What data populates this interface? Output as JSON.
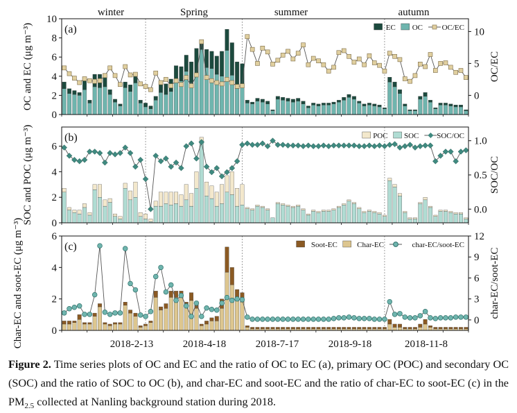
{
  "figure": {
    "seasons": [
      "winter",
      "Spring",
      "summer",
      "autumn"
    ],
    "x_ticks": [
      "2018-2-13",
      "2018-4-18",
      "2018-7-17",
      "2018-9-18",
      "2018-11-8"
    ],
    "caption": {
      "label": "Figure 2.",
      "text_before_sub": " Time series plots of OC and EC and the ratio of OC to EC (a), primary OC (POC) and secondary OC (SOC) and the ratio of SOC to OC (b), and char-EC and soot-EC and the ratio of char-EC to soot-EC (c) in the PM",
      "sub": "2.5",
      "text_after_sub": " collected at Nanling background station during 2018."
    }
  },
  "colors": {
    "ec": "#1c4a3e",
    "oc": "#6fb5ae",
    "ocec_marker": "#e0cf9f",
    "poc": "#f3e8cc",
    "soc": "#b0dcd3",
    "sococ_marker": "#3f8a80",
    "soot": "#8b5a23",
    "char": "#ddc68f",
    "ratio_c_marker": "#6fb5ae",
    "line": "#555555"
  },
  "chart_data": [
    {
      "type": "bar",
      "panel_label": "(a)",
      "stacked": true,
      "ylabel": "OC and EC (μg m⁻³)",
      "y2label": "OC/EC",
      "ylim": [
        0,
        10
      ],
      "y2lim": [
        -3,
        12
      ],
      "yticks": [
        0,
        2,
        4,
        6,
        8,
        10
      ],
      "y2ticks": [
        0,
        5,
        10
      ],
      "legend": "top-right",
      "series": [
        {
          "name": "OC",
          "values": [
            2.7,
            2.2,
            2.1,
            2.0,
            2.6,
            1.2,
            2.9,
            2.8,
            2.9,
            2.1,
            1.3,
            0.9,
            2.8,
            2.4,
            3.3,
            1.2,
            0.8,
            0.6,
            1.5,
            2.3,
            2.1,
            2.4,
            3.7,
            3.5,
            4.5,
            3.3,
            4.3,
            6.8,
            4.9,
            4.8,
            4.2,
            4.0,
            6.7,
            4.1,
            2.7,
            2.8,
            1.2,
            1.1,
            1.4,
            1.3,
            1.1,
            0.4,
            1.6,
            1.5,
            1.4,
            1.3,
            1.4,
            1.1,
            0.7,
            1.0,
            0.9,
            1.0,
            1.0,
            1.1,
            1.3,
            1.5,
            1.8,
            1.6,
            1.2,
            0.9,
            1.0,
            0.9,
            0.8,
            0.6,
            3.4,
            2.9,
            2.2,
            0.9,
            0.4,
            0.4,
            1.6,
            1.9,
            1.3,
            0.6,
            1.0,
            1.0,
            0.9,
            0.8,
            0.8,
            0.4
          ]
        },
        {
          "name": "EC",
          "values": [
            0.7,
            0.5,
            0.4,
            0.3,
            1.3,
            0.3,
            1.3,
            1.4,
            1.4,
            0.5,
            0.3,
            0.2,
            0.6,
            0.7,
            1.1,
            0.3,
            0.4,
            0.3,
            0.4,
            1.1,
            1.1,
            1.3,
            1.4,
            1.5,
            1.7,
            2.2,
            2.6,
            1.0,
            1.9,
            1.8,
            1.9,
            2.6,
            2.2,
            3.4,
            2.8,
            2.5,
            0.3,
            0.2,
            0.3,
            0.3,
            0.3,
            0.1,
            0.3,
            0.3,
            0.3,
            0.3,
            0.3,
            0.3,
            0.2,
            0.2,
            0.2,
            0.2,
            0.2,
            0.2,
            0.2,
            0.3,
            0.3,
            0.3,
            0.2,
            0.2,
            0.2,
            0.2,
            0.2,
            0.1,
            0.5,
            0.5,
            0.4,
            0.2,
            0.1,
            0.1,
            0.3,
            0.4,
            0.2,
            0.1,
            0.2,
            0.2,
            0.2,
            0.2,
            0.2,
            0.1
          ]
        },
        {
          "name": "OC/EC",
          "axis": "right",
          "type": "line",
          "values": [
            4.3,
            3.4,
            2.7,
            2.0,
            2.6,
            2.3,
            2.2,
            2.3,
            3.1,
            4.3,
            3.1,
            1.7,
            4.5,
            3.2,
            3.3,
            1.8,
            1.4,
            0.9,
            3.5,
            2.0,
            2.5,
            1.5,
            2.3,
            1.7,
            2.8,
            1.5,
            3.2,
            8.4,
            2.8,
            2.3,
            2.0,
            1.8,
            2.5,
            2.0,
            1.4,
            1.5,
            9.2,
            7.2,
            5.0,
            7.4,
            6.8,
            4.9,
            5.5,
            6.3,
            6.9,
            5.7,
            6.6,
            7.9,
            4.8,
            5.8,
            5.4,
            4.8,
            3.8,
            4.4,
            6.7,
            7.0,
            6.1,
            5.2,
            5.7,
            4.8,
            6.2,
            5.1,
            4.7,
            3.8,
            6.6,
            6.1,
            5.6,
            2.6,
            2.2,
            3.1,
            4.9,
            4.5,
            6.4,
            3.9,
            5.0,
            5.1,
            4.4,
            3.6,
            3.9,
            2.8
          ]
        }
      ]
    },
    {
      "type": "bar",
      "panel_label": "(b)",
      "stacked": true,
      "ylabel": "SOC and POC (μg m⁻³)",
      "y2label": "SOC/OC",
      "ylim": [
        0,
        7.5
      ],
      "y2lim": [
        -0.2,
        1.2
      ],
      "yticks": [
        0,
        2,
        4,
        6
      ],
      "y2ticks": [
        0.0,
        0.5,
        1.0
      ],
      "legend": "top-right",
      "series": [
        {
          "name": "SOC",
          "values": [
            2.4,
            1.0,
            0.8,
            0.7,
            1.2,
            0.6,
            2.6,
            2.0,
            1.3,
            1.6,
            0.5,
            0.3,
            2.7,
            1.8,
            2.0,
            0.5,
            0.3,
            0.1,
            1.3,
            1.3,
            1.5,
            1.4,
            1.5,
            1.3,
            1.8,
            1.3,
            2.7,
            6.4,
            2.1,
            1.9,
            1.3,
            1.5,
            2.4,
            2.2,
            1.3,
            1.4,
            1.1,
            1.0,
            1.3,
            1.2,
            1.0,
            0.4,
            1.5,
            1.4,
            1.3,
            1.2,
            1.3,
            1.0,
            0.6,
            0.9,
            0.8,
            0.9,
            0.9,
            1.0,
            1.2,
            1.4,
            1.7,
            1.5,
            1.1,
            0.8,
            0.9,
            0.8,
            0.7,
            0.5,
            3.3,
            2.8,
            2.1,
            0.8,
            0.3,
            0.3,
            1.5,
            1.8,
            1.2,
            0.5,
            0.9,
            0.9,
            0.8,
            0.7,
            0.7,
            0.3
          ]
        },
        {
          "name": "POC",
          "values": [
            0.3,
            0.2,
            0.2,
            0.3,
            0.3,
            0.2,
            0.4,
            1.0,
            0.5,
            0.3,
            0.2,
            0.2,
            0.4,
            0.7,
            1.2,
            0.3,
            0.4,
            0.2,
            0.4,
            1.1,
            0.9,
            1.0,
            0.9,
            0.9,
            1.2,
            1.0,
            1.3,
            0.3,
            1.1,
            1.0,
            1.1,
            1.5,
            1.3,
            1.8,
            1.4,
            1.6,
            0.1,
            0.1,
            0.1,
            0.1,
            0.1,
            0.0,
            0.1,
            0.1,
            0.1,
            0.1,
            0.1,
            0.1,
            0.1,
            0.1,
            0.1,
            0.1,
            0.1,
            0.1,
            0.1,
            0.1,
            0.1,
            0.1,
            0.1,
            0.1,
            0.1,
            0.1,
            0.1,
            0.1,
            0.2,
            0.2,
            0.2,
            0.1,
            0.1,
            0.1,
            0.1,
            0.2,
            0.1,
            0.1,
            0.1,
            0.1,
            0.1,
            0.1,
            0.1,
            0.1
          ]
        },
        {
          "name": "SOC/OC",
          "axis": "right",
          "type": "line",
          "values": [
            0.9,
            0.78,
            0.72,
            0.7,
            0.72,
            0.84,
            0.84,
            0.82,
            0.68,
            0.82,
            0.8,
            0.82,
            0.9,
            0.82,
            0.62,
            0.72,
            0.44,
            0.0,
            0.78,
            0.7,
            0.74,
            0.62,
            0.68,
            0.6,
            0.92,
            0.96,
            0.74,
            0.98,
            0.62,
            0.54,
            0.6,
            0.48,
            0.54,
            0.6,
            0.7,
            0.94,
            0.96,
            0.94,
            0.94,
            0.96,
            0.92,
            1.0,
            0.94,
            0.94,
            0.93,
            0.93,
            0.93,
            0.92,
            0.93,
            0.92,
            0.92,
            0.93,
            0.92,
            0.93,
            0.93,
            0.93,
            0.93,
            0.93,
            0.92,
            0.92,
            0.93,
            0.92,
            0.93,
            0.92,
            0.94,
            0.95,
            0.9,
            0.92,
            0.94,
            0.9,
            0.92,
            0.93,
            0.93,
            0.7,
            0.78,
            0.84,
            0.84,
            0.7,
            0.84,
            0.86
          ]
        }
      ]
    },
    {
      "type": "bar",
      "panel_label": "(c)",
      "stacked": true,
      "ylabel": "Char-EC and soot-EC (μg m⁻³)",
      "y2label": "char-EC/soot-EC",
      "ylim": [
        0,
        6
      ],
      "y2lim": [
        -1.5,
        12
      ],
      "yticks": [
        0,
        2,
        4,
        6
      ],
      "y2ticks": [
        0,
        3,
        6,
        9,
        12
      ],
      "legend": "top-right",
      "series": [
        {
          "name": "Char-EC",
          "values": [
            0.4,
            0.4,
            0.5,
            0.7,
            0.4,
            0.4,
            0.9,
            1.5,
            0.4,
            0.3,
            0.4,
            0.4,
            1.6,
            1.1,
            0.9,
            0.2,
            0.3,
            0.5,
            2.1,
            1.3,
            1.4,
            2.1,
            2.1,
            2.1,
            1.5,
            1.9,
            1.4,
            0.3,
            0.4,
            0.6,
            0.6,
            1.4,
            3.7,
            2.9,
            1.9,
            1.8,
            0.2,
            0.1,
            0.1,
            0.1,
            0.1,
            0.1,
            0.1,
            0.1,
            0.1,
            0.1,
            0.1,
            0.1,
            0.1,
            0.1,
            0.1,
            0.1,
            0.1,
            0.1,
            0.1,
            0.1,
            0.1,
            0.1,
            0.1,
            0.1,
            0.1,
            0.1,
            0.1,
            0.1,
            0.4,
            0.2,
            0.2,
            0.1,
            0.1,
            0.1,
            0.2,
            0.4,
            0.2,
            0.1,
            0.1,
            0.1,
            0.1,
            0.1,
            0.1,
            0.1
          ]
        },
        {
          "name": "Soot-EC",
          "values": [
            0.2,
            0.2,
            0.1,
            0.3,
            0.1,
            0.1,
            0.2,
            0.2,
            0.1,
            0.1,
            0.1,
            0.1,
            0.2,
            0.2,
            0.2,
            0.1,
            0.1,
            0.1,
            0.4,
            0.2,
            0.3,
            0.4,
            0.4,
            0.4,
            0.3,
            0.5,
            0.3,
            0.1,
            0.2,
            0.2,
            0.3,
            0.6,
            1.6,
            1.1,
            0.7,
            0.6,
            0.1,
            0.1,
            0.1,
            0.1,
            0.1,
            0.1,
            0.1,
            0.1,
            0.1,
            0.1,
            0.1,
            0.1,
            0.1,
            0.1,
            0.1,
            0.1,
            0.1,
            0.1,
            0.1,
            0.1,
            0.1,
            0.1,
            0.1,
            0.1,
            0.1,
            0.1,
            0.1,
            0.1,
            0.3,
            0.2,
            0.2,
            0.1,
            0.1,
            0.1,
            0.2,
            0.3,
            0.1,
            0.1,
            0.1,
            0.1,
            0.1,
            0.1,
            0.1,
            0.1
          ]
        },
        {
          "name": "char-EC/soot-EC",
          "axis": "right",
          "type": "line",
          "values": [
            1.0,
            1.6,
            1.8,
            2.0,
            0.8,
            0.8,
            3.6,
            10.6,
            1.1,
            0.8,
            1.0,
            1.0,
            10.2,
            5.2,
            4.3,
            0.7,
            0.5,
            1.2,
            6.2,
            7.5,
            4.0,
            5.0,
            2.8,
            3.5,
            2.0,
            0.5,
            2.4,
            0.5,
            1.7,
            1.5,
            1.4,
            2.4,
            3.2,
            2.8,
            3.0,
            2.9,
            0.4,
            0.1,
            0.1,
            0.1,
            0.1,
            0.1,
            0.1,
            0.1,
            0.1,
            0.1,
            0.1,
            0.1,
            0.1,
            0.1,
            0.1,
            0.1,
            0.1,
            0.2,
            0.3,
            0.3,
            0.4,
            0.3,
            0.2,
            0.2,
            0.2,
            0.1,
            0.1,
            0.1,
            2.6,
            0.8,
            0.9,
            0.4,
            0.3,
            0.3,
            0.6,
            1.2,
            0.3,
            0.2,
            0.3,
            0.3,
            0.3,
            0.4,
            0.4,
            0.4
          ]
        }
      ]
    }
  ]
}
